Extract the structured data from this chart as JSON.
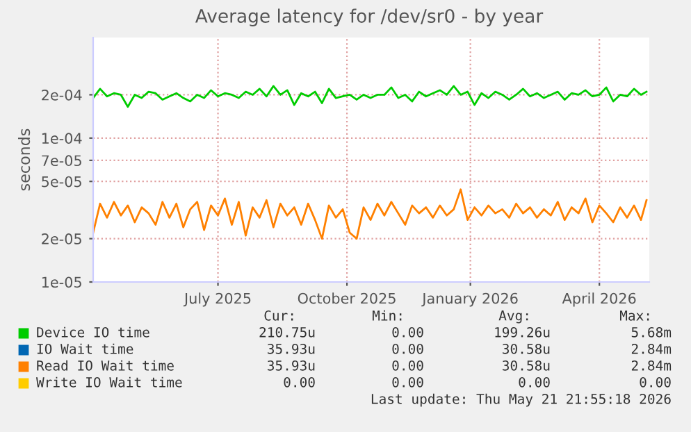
{
  "chart_data": {
    "type": "line",
    "title": "Average latency for /dev/sr0 - by year",
    "ylabel": "seconds",
    "log": "y",
    "ylim": [
      1e-05,
      0.0005
    ],
    "yticks": [
      {
        "value": 1e-05,
        "label": "1e-05"
      },
      {
        "value": 2e-05,
        "label": "2e-05"
      },
      {
        "value": 5e-05,
        "label": "5e-05"
      },
      {
        "value": 7e-05,
        "label": "7e-05"
      },
      {
        "value": 0.0001,
        "label": "1e-04"
      },
      {
        "value": 0.0002,
        "label": "2e-04"
      }
    ],
    "xlim": [
      "2025-04-17",
      "2026-05-23"
    ],
    "xticks": [
      {
        "value": "2025-07-16",
        "label": "July 2025"
      },
      {
        "value": "2025-10-17",
        "label": "October 2025"
      },
      {
        "value": "2026-01-14",
        "label": "January 2026"
      },
      {
        "value": "2026-04-17",
        "label": "April 2026"
      }
    ],
    "grid": true,
    "legend": "bottom",
    "x": [
      "2025-04-17",
      "2025-04-22",
      "2025-04-27",
      "2025-05-02",
      "2025-05-07",
      "2025-05-12",
      "2025-05-17",
      "2025-05-22",
      "2025-05-27",
      "2025-06-01",
      "2025-06-06",
      "2025-06-11",
      "2025-06-16",
      "2025-06-21",
      "2025-06-26",
      "2025-07-01",
      "2025-07-06",
      "2025-07-11",
      "2025-07-16",
      "2025-07-21",
      "2025-07-26",
      "2025-07-31",
      "2025-08-05",
      "2025-08-10",
      "2025-08-15",
      "2025-08-20",
      "2025-08-25",
      "2025-08-30",
      "2025-09-04",
      "2025-09-09",
      "2025-09-14",
      "2025-09-19",
      "2025-09-24",
      "2025-09-29",
      "2025-10-04",
      "2025-10-09",
      "2025-10-14",
      "2025-10-19",
      "2025-10-24",
      "2025-10-29",
      "2025-11-03",
      "2025-11-08",
      "2025-11-13",
      "2025-11-18",
      "2025-11-23",
      "2025-11-28",
      "2025-12-03",
      "2025-12-08",
      "2025-12-13",
      "2025-12-18",
      "2025-12-23",
      "2025-12-28",
      "2026-01-02",
      "2026-01-07",
      "2026-01-12",
      "2026-01-17",
      "2026-01-22",
      "2026-01-27",
      "2026-02-01",
      "2026-02-06",
      "2026-02-11",
      "2026-02-16",
      "2026-02-21",
      "2026-02-26",
      "2026-03-03",
      "2026-03-08",
      "2026-03-13",
      "2026-03-18",
      "2026-03-23",
      "2026-03-28",
      "2026-04-02",
      "2026-04-07",
      "2026-04-12",
      "2026-04-17",
      "2026-04-22",
      "2026-04-27",
      "2026-05-02",
      "2026-05-07",
      "2026-05-12",
      "2026-05-17",
      "2026-05-21"
    ],
    "series": [
      {
        "name": "Device IO time",
        "color": "#00cc00",
        "values": [
          0.00019,
          0.00022,
          0.000195,
          0.000205,
          0.0002,
          0.000165,
          0.0002,
          0.00019,
          0.00021,
          0.000205,
          0.000185,
          0.000195,
          0.000205,
          0.00019,
          0.00018,
          0.0002,
          0.00019,
          0.000215,
          0.000195,
          0.000205,
          0.0002,
          0.00019,
          0.00021,
          0.0002,
          0.00022,
          0.000195,
          0.00023,
          0.0002,
          0.000215,
          0.00017,
          0.000205,
          0.000195,
          0.00021,
          0.000175,
          0.00022,
          0.00019,
          0.000195,
          0.0002,
          0.000185,
          0.0002,
          0.00019,
          0.0002,
          0.0002,
          0.000225,
          0.00019,
          0.0002,
          0.00018,
          0.00021,
          0.000195,
          0.000205,
          0.000215,
          0.0002,
          0.00023,
          0.0002,
          0.00021,
          0.00017,
          0.000205,
          0.00019,
          0.00021,
          0.0002,
          0.000185,
          0.0002,
          0.00022,
          0.000195,
          0.000205,
          0.00019,
          0.0002,
          0.00021,
          0.000185,
          0.000205,
          0.0002,
          0.000215,
          0.000195,
          0.0002,
          0.000225,
          0.00018,
          0.0002,
          0.000195,
          0.00022,
          0.0002,
          0.00021
        ]
      },
      {
        "name": "IO Wait time",
        "color": "#0066b3",
        "values": [
          null,
          null,
          null,
          null,
          null,
          null,
          null,
          null,
          null,
          null,
          null,
          null,
          null,
          null,
          null,
          null,
          null,
          null,
          null,
          null,
          null,
          null,
          null,
          null,
          null,
          null,
          null,
          null,
          null,
          null,
          null,
          null,
          null,
          null,
          null,
          null,
          null,
          null,
          null,
          null,
          null,
          null,
          null,
          null,
          null,
          null,
          null,
          null,
          null,
          null,
          null,
          null,
          null,
          null,
          null,
          null,
          null,
          null,
          null,
          null,
          null,
          null,
          null,
          null,
          null,
          null,
          null,
          null,
          null,
          null,
          null,
          null,
          null,
          null,
          null,
          null,
          null,
          null,
          null,
          null,
          null
        ]
      },
      {
        "name": "Read IO Wait time",
        "color": "#ff8000",
        "values": [
          2.2e-05,
          3.5e-05,
          2.8e-05,
          3.6e-05,
          2.9e-05,
          3.4e-05,
          2.6e-05,
          3.3e-05,
          3e-05,
          2.5e-05,
          3.6e-05,
          2.8e-05,
          3.5e-05,
          2.4e-05,
          3.2e-05,
          3.6e-05,
          2.3e-05,
          3.4e-05,
          2.9e-05,
          3.8e-05,
          2.5e-05,
          3.6e-05,
          2.1e-05,
          3.3e-05,
          2.8e-05,
          3.7e-05,
          2.4e-05,
          3.5e-05,
          2.9e-05,
          3.3e-05,
          2.5e-05,
          3.5e-05,
          2.7e-05,
          2e-05,
          3.4e-05,
          2.8e-05,
          3.2e-05,
          2.2e-05,
          2e-05,
          3.3e-05,
          2.7e-05,
          3.5e-05,
          2.9e-05,
          3.6e-05,
          3e-05,
          2.5e-05,
          3.4e-05,
          3e-05,
          3.3e-05,
          2.8e-05,
          3.4e-05,
          2.9e-05,
          3.2e-05,
          4.4e-05,
          2.7e-05,
          3.3e-05,
          2.9e-05,
          3.4e-05,
          3e-05,
          3.2e-05,
          2.8e-05,
          3.5e-05,
          3e-05,
          3.3e-05,
          2.8e-05,
          3.2e-05,
          2.9e-05,
          3.6e-05,
          2.7e-05,
          3.3e-05,
          3e-05,
          3.8e-05,
          2.6e-05,
          3.4e-05,
          3e-05,
          2.6e-05,
          3.3e-05,
          2.8e-05,
          3.4e-05,
          2.7e-05,
          3.7e-05
        ]
      },
      {
        "name": "Write IO Wait time",
        "color": "#ffcc00",
        "values": [
          null,
          null,
          null,
          null,
          null,
          null,
          null,
          null,
          null,
          null,
          null,
          null,
          null,
          null,
          null,
          null,
          null,
          null,
          null,
          null,
          null,
          null,
          null,
          null,
          null,
          null,
          null,
          null,
          null,
          null,
          null,
          null,
          null,
          null,
          null,
          null,
          null,
          null,
          null,
          null,
          null,
          null,
          null,
          null,
          null,
          null,
          null,
          null,
          null,
          null,
          null,
          null,
          null,
          null,
          null,
          null,
          null,
          null,
          null,
          null,
          null,
          null,
          null,
          null,
          null,
          null,
          null,
          null,
          null,
          null,
          null,
          null,
          null,
          null,
          null,
          null,
          null,
          null,
          null,
          null,
          null
        ]
      }
    ],
    "annotations": [
      "Cur:",
      "Min:",
      "Avg:",
      "Max:",
      "210.75u",
      "0.00",
      "199.26u",
      "5.68m",
      "35.93u",
      "0.00",
      "30.58u",
      "2.84m",
      "35.93u",
      "0.00",
      "30.58u",
      "2.84m",
      "0.00",
      "0.00",
      "0.00",
      "0.00",
      "Last update: Thu May 21 21:55:18 2026"
    ]
  }
}
